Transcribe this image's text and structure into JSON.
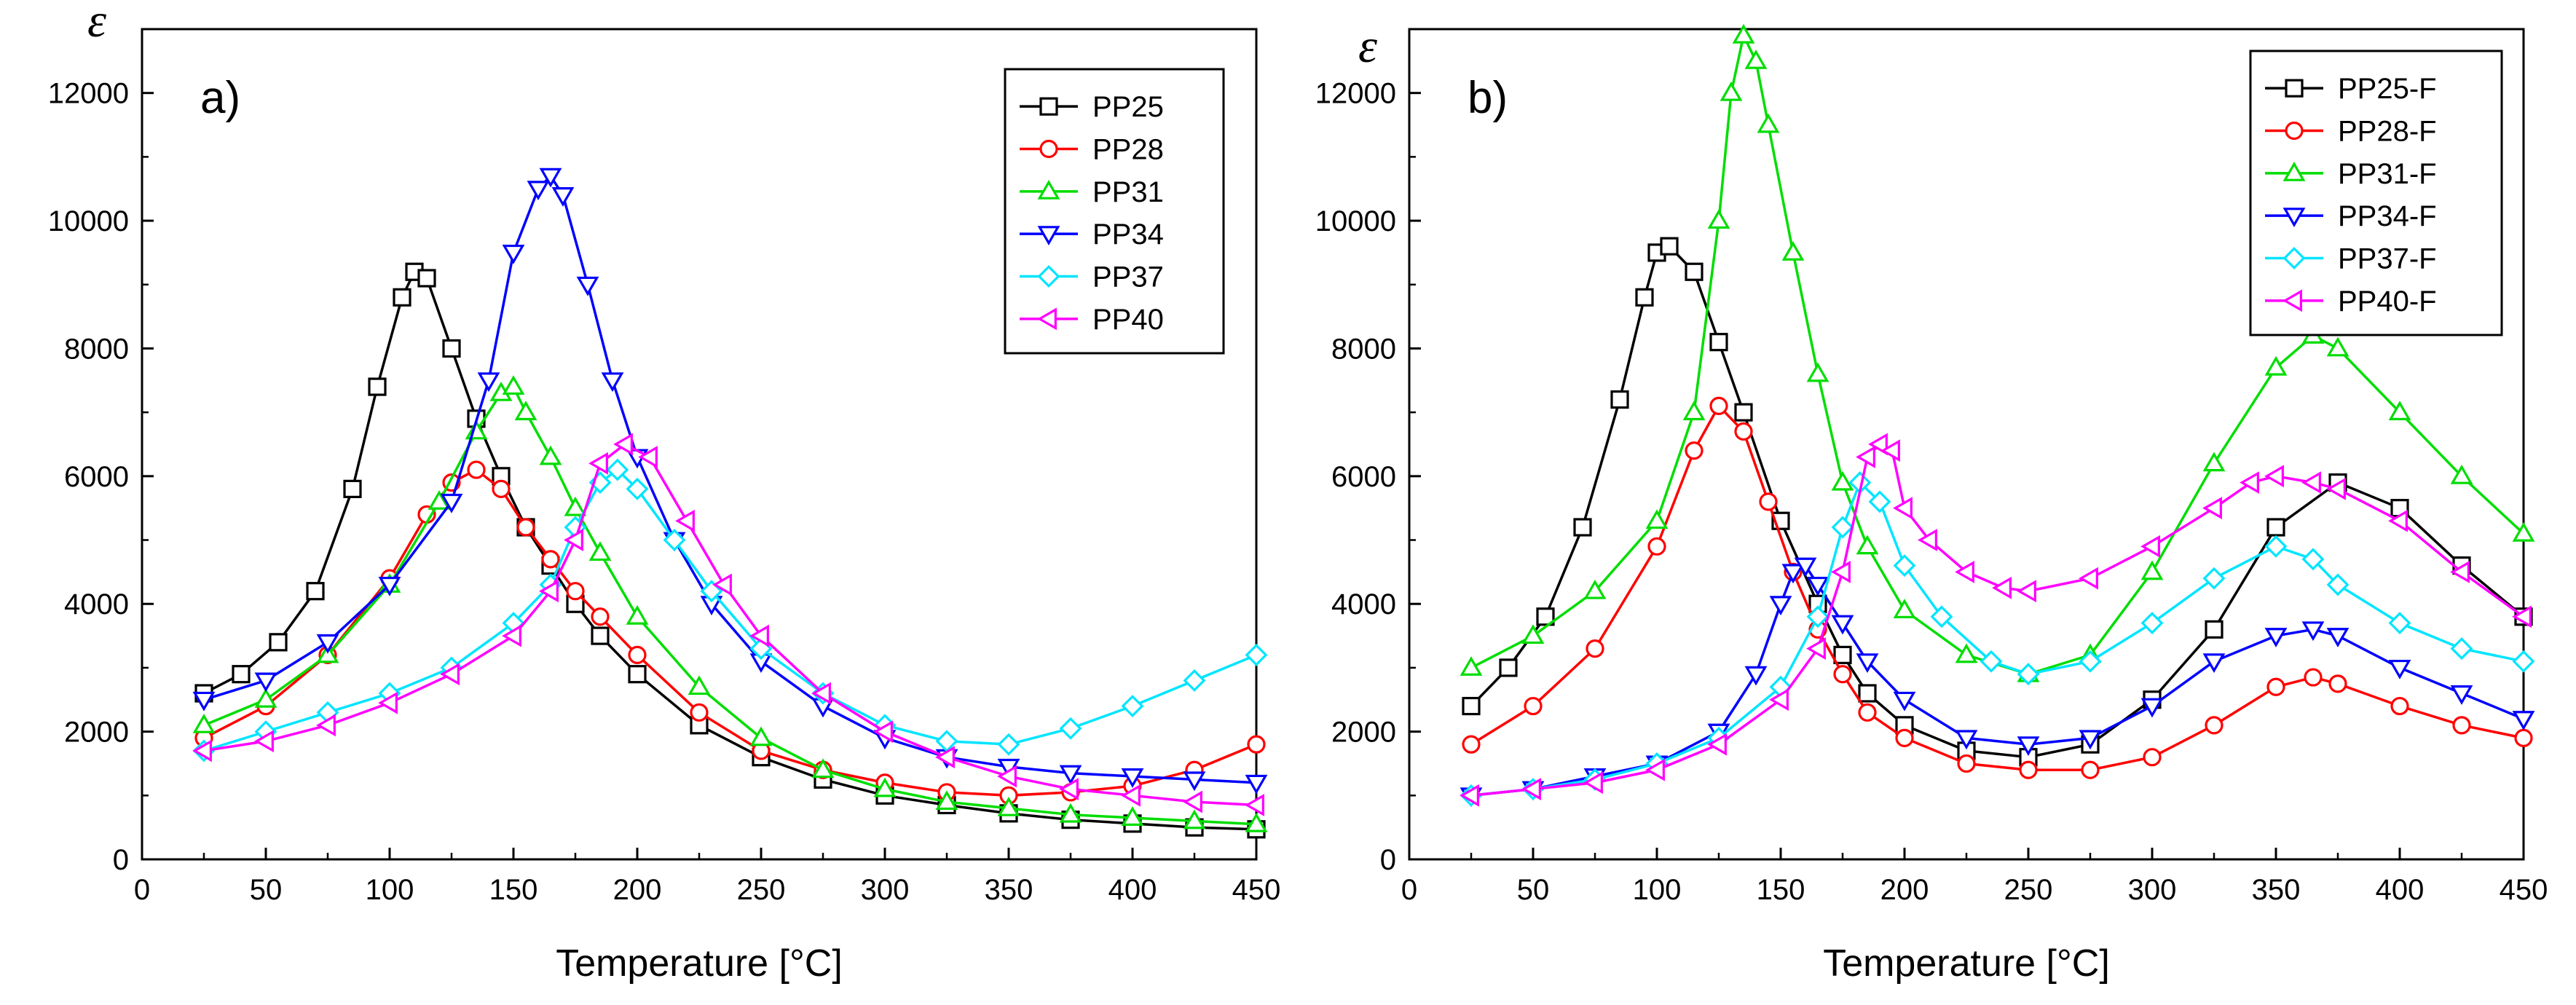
{
  "chart_data": [
    {
      "type": "line",
      "panel_label": "a)",
      "ylabel": "ε",
      "xlabel": "Temperature [°C]",
      "xlim": [
        0,
        450
      ],
      "ylim": [
        0,
        13000
      ],
      "xticks": [
        0,
        50,
        100,
        150,
        200,
        250,
        300,
        350,
        400,
        450
      ],
      "yticks": [
        0,
        2000,
        4000,
        6000,
        8000,
        10000,
        12000
      ],
      "legend_position": "top-right",
      "series": [
        {
          "name": "PP25",
          "color": "#000000",
          "marker": "square",
          "x": [
            25,
            40,
            55,
            70,
            85,
            95,
            105,
            110,
            115,
            125,
            135,
            145,
            155,
            165,
            175,
            185,
            200,
            225,
            250,
            275,
            300,
            325,
            350,
            375,
            400,
            425,
            450
          ],
          "y": [
            2600,
            2900,
            3400,
            4200,
            5800,
            7400,
            8800,
            9200,
            9100,
            8000,
            6900,
            6000,
            5200,
            4600,
            4000,
            3500,
            2900,
            2100,
            1600,
            1250,
            1000,
            850,
            720,
            620,
            560,
            500,
            470
          ]
        },
        {
          "name": "PP28",
          "color": "#ff0000",
          "marker": "circle",
          "x": [
            25,
            50,
            75,
            100,
            115,
            125,
            135,
            145,
            155,
            165,
            175,
            185,
            200,
            225,
            250,
            275,
            300,
            325,
            350,
            375,
            400,
            425,
            450
          ],
          "y": [
            1900,
            2400,
            3200,
            4400,
            5400,
            5900,
            6100,
            5800,
            5200,
            4700,
            4200,
            3800,
            3200,
            2300,
            1700,
            1400,
            1200,
            1050,
            1000,
            1050,
            1150,
            1400,
            1800
          ]
        },
        {
          "name": "PP31",
          "color": "#00dd00",
          "marker": "triangle-up",
          "x": [
            25,
            50,
            75,
            100,
            120,
            135,
            145,
            150,
            155,
            165,
            175,
            185,
            200,
            225,
            250,
            275,
            300,
            325,
            350,
            375,
            400,
            425,
            450
          ],
          "y": [
            2100,
            2500,
            3200,
            4300,
            5600,
            6700,
            7300,
            7400,
            7000,
            6300,
            5500,
            4800,
            3800,
            2700,
            1900,
            1400,
            1100,
            900,
            800,
            700,
            650,
            600,
            550
          ]
        },
        {
          "name": "PP34",
          "color": "#0000ff",
          "marker": "triangle-down",
          "x": [
            25,
            50,
            75,
            100,
            125,
            140,
            150,
            160,
            165,
            170,
            180,
            190,
            200,
            215,
            230,
            250,
            275,
            300,
            325,
            350,
            375,
            400,
            425,
            450
          ],
          "y": [
            2500,
            2800,
            3400,
            4300,
            5600,
            7500,
            9500,
            10500,
            10700,
            10400,
            9000,
            7500,
            6300,
            5000,
            4000,
            3100,
            2400,
            1900,
            1600,
            1450,
            1350,
            1300,
            1250,
            1200
          ]
        },
        {
          "name": "PP37",
          "color": "#00e5ff",
          "marker": "diamond",
          "x": [
            25,
            50,
            75,
            100,
            125,
            150,
            165,
            175,
            185,
            192,
            200,
            215,
            230,
            250,
            275,
            300,
            325,
            350,
            375,
            400,
            425,
            450
          ],
          "y": [
            1700,
            2000,
            2300,
            2600,
            3000,
            3700,
            4300,
            5200,
            5900,
            6100,
            5800,
            5000,
            4200,
            3300,
            2600,
            2100,
            1850,
            1800,
            2050,
            2400,
            2800,
            3200
          ]
        },
        {
          "name": "PP40",
          "color": "#ff00ff",
          "marker": "triangle-left",
          "x": [
            25,
            50,
            75,
            100,
            125,
            150,
            165,
            175,
            185,
            195,
            205,
            220,
            235,
            250,
            275,
            300,
            325,
            350,
            375,
            400,
            425,
            450
          ],
          "y": [
            1700,
            1850,
            2100,
            2450,
            2900,
            3500,
            4200,
            5000,
            6200,
            6500,
            6300,
            5300,
            4300,
            3500,
            2600,
            2000,
            1600,
            1300,
            1100,
            1000,
            900,
            850
          ]
        }
      ]
    },
    {
      "type": "line",
      "panel_label": "b)",
      "ylabel": "ε",
      "xlabel": "Temperature [°C]",
      "xlim": [
        0,
        450
      ],
      "ylim": [
        0,
        13000
      ],
      "xticks": [
        0,
        50,
        100,
        150,
        200,
        250,
        300,
        350,
        400,
        450
      ],
      "yticks": [
        0,
        2000,
        4000,
        6000,
        8000,
        10000,
        12000
      ],
      "legend_position": "top-right",
      "series": [
        {
          "name": "PP25-F",
          "color": "#000000",
          "marker": "square",
          "x": [
            25,
            40,
            55,
            70,
            85,
            95,
            100,
            105,
            115,
            125,
            135,
            150,
            165,
            175,
            185,
            200,
            225,
            250,
            275,
            300,
            325,
            350,
            375,
            400,
            425,
            450
          ],
          "y": [
            2400,
            3000,
            3800,
            5200,
            7200,
            8800,
            9500,
            9600,
            9200,
            8100,
            7000,
            5300,
            4000,
            3200,
            2600,
            2100,
            1700,
            1600,
            1800,
            2500,
            3600,
            5200,
            5900,
            5500,
            4600,
            3800
          ]
        },
        {
          "name": "PP28-F",
          "color": "#ff0000",
          "marker": "circle",
          "x": [
            25,
            50,
            75,
            100,
            115,
            125,
            135,
            145,
            155,
            165,
            175,
            185,
            200,
            225,
            250,
            275,
            300,
            325,
            350,
            365,
            375,
            400,
            425,
            450
          ],
          "y": [
            1800,
            2400,
            3300,
            4900,
            6400,
            7100,
            6700,
            5600,
            4500,
            3600,
            2900,
            2300,
            1900,
            1500,
            1400,
            1400,
            1600,
            2100,
            2700,
            2850,
            2750,
            2400,
            2100,
            1900
          ]
        },
        {
          "name": "PP31-F",
          "color": "#00dd00",
          "marker": "triangle-up",
          "x": [
            25,
            50,
            75,
            100,
            115,
            125,
            130,
            135,
            140,
            145,
            155,
            165,
            175,
            185,
            200,
            225,
            250,
            275,
            300,
            325,
            350,
            365,
            375,
            400,
            425,
            450
          ],
          "y": [
            3000,
            3500,
            4200,
            5300,
            7000,
            10000,
            12000,
            12900,
            12500,
            11500,
            9500,
            7600,
            5900,
            4900,
            3900,
            3200,
            2900,
            3200,
            4500,
            6200,
            7700,
            8200,
            8000,
            7000,
            6000,
            5100
          ]
        },
        {
          "name": "PP34-F",
          "color": "#0000ff",
          "marker": "triangle-down",
          "x": [
            25,
            50,
            75,
            100,
            125,
            140,
            150,
            155,
            160,
            165,
            175,
            185,
            200,
            225,
            250,
            275,
            300,
            325,
            350,
            365,
            375,
            400,
            425,
            450
          ],
          "y": [
            1000,
            1100,
            1300,
            1500,
            2000,
            2900,
            4000,
            4500,
            4600,
            4300,
            3700,
            3100,
            2500,
            1900,
            1800,
            1900,
            2400,
            3100,
            3500,
            3600,
            3500,
            3000,
            2600,
            2200
          ]
        },
        {
          "name": "PP37-F",
          "color": "#00e5ff",
          "marker": "diamond",
          "x": [
            25,
            50,
            75,
            100,
            125,
            150,
            165,
            175,
            182,
            190,
            200,
            215,
            235,
            250,
            275,
            300,
            325,
            350,
            365,
            375,
            400,
            425,
            450
          ],
          "y": [
            1000,
            1100,
            1250,
            1500,
            1900,
            2700,
            3800,
            5200,
            5900,
            5600,
            4600,
            3800,
            3100,
            2900,
            3100,
            3700,
            4400,
            4900,
            4700,
            4300,
            3700,
            3300,
            3100
          ]
        },
        {
          "name": "PP40-F",
          "color": "#ff00ff",
          "marker": "triangle-left",
          "x": [
            25,
            50,
            75,
            100,
            125,
            150,
            165,
            175,
            185,
            190,
            195,
            200,
            210,
            225,
            240,
            250,
            275,
            300,
            325,
            340,
            350,
            365,
            375,
            400,
            425,
            450
          ],
          "y": [
            1000,
            1100,
            1200,
            1400,
            1800,
            2500,
            3300,
            4500,
            6300,
            6500,
            6400,
            5500,
            5000,
            4500,
            4250,
            4200,
            4400,
            4900,
            5500,
            5900,
            6000,
            5900,
            5800,
            5300,
            4500,
            3800
          ]
        }
      ]
    }
  ]
}
